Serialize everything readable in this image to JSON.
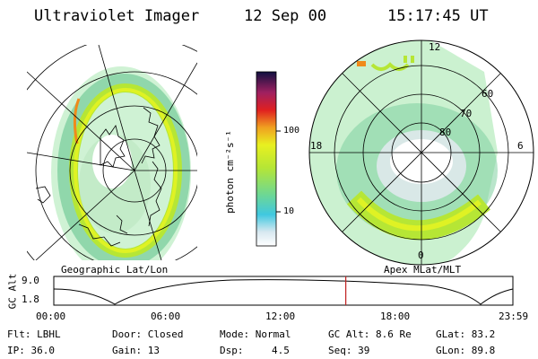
{
  "header": {
    "instrument": "Ultraviolet Imager",
    "date": "12 Sep 00",
    "time": "15:17:45 UT"
  },
  "panels": {
    "left_caption": "Geographic Lat/Lon",
    "right_caption": "Apex MLat/MLT"
  },
  "right_polar": {
    "lat_labels": [
      "60",
      "70",
      "80"
    ],
    "mlt_labels": [
      "12",
      "18",
      "6",
      "0"
    ]
  },
  "colorbar": {
    "unit_label": "photon cm⁻²s⁻¹",
    "ticks": [
      "100",
      "10"
    ]
  },
  "altitude_strip": {
    "axis_label": "GC Alt",
    "y_ticks": [
      "9.0",
      "1.8"
    ],
    "time_ticks": [
      "00:00",
      "06:00",
      "12:00",
      "18:00",
      "23:59"
    ],
    "current_time_fraction": 0.636
  },
  "info": {
    "row1": {
      "flt": "Flt: LBHL",
      "door": "Door: Closed",
      "mode": "Mode: Normal",
      "gcalt": "GC Alt: 8.6 Re",
      "glat": "GLat:  83.2"
    },
    "row2": {
      "ip": "IP: 36.0",
      "gain": "Gain: 13",
      "dsp_label": "Dsp:",
      "dsp_value": "4.5",
      "seq": "Seq: 39",
      "glon": "GLon:  89.8"
    }
  },
  "colors": {
    "aurora_outer": "#7fd0a0",
    "aurora_mid": "#b6e635",
    "aurora_bright": "#dff224",
    "aurora_hot": "#f08a1a",
    "cursor_line": "#c02020"
  }
}
